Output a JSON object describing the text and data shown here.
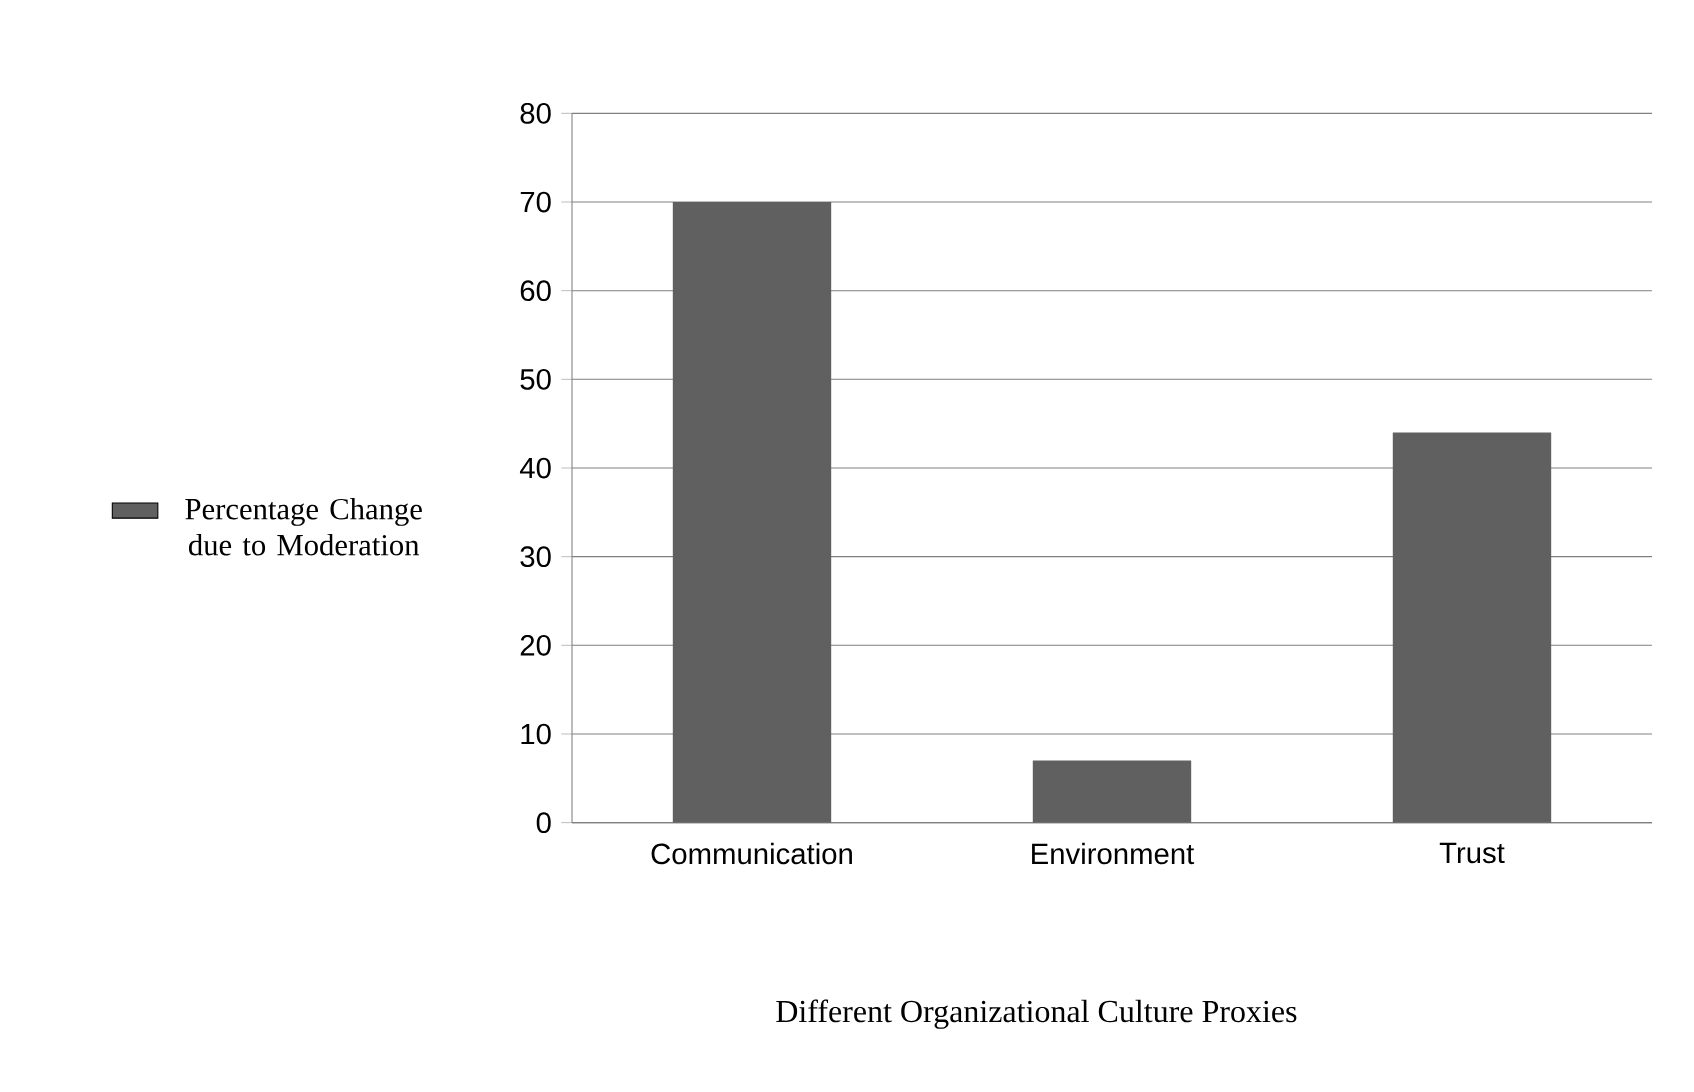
{
  "chart_data": {
    "type": "bar",
    "xlabel": "Different Organizational Culture Proxies",
    "categories": [
      "Communication",
      "Environment",
      "Trust"
    ],
    "series": [
      {
        "name": "Percentage Change due to Moderation",
        "color": "#606060",
        "values": [
          70,
          7,
          44
        ]
      }
    ],
    "ylim": [
      0,
      80
    ],
    "yticks": [
      0,
      10,
      20,
      30,
      40,
      50,
      60,
      70,
      80
    ],
    "grid": "y",
    "legend": "left"
  }
}
